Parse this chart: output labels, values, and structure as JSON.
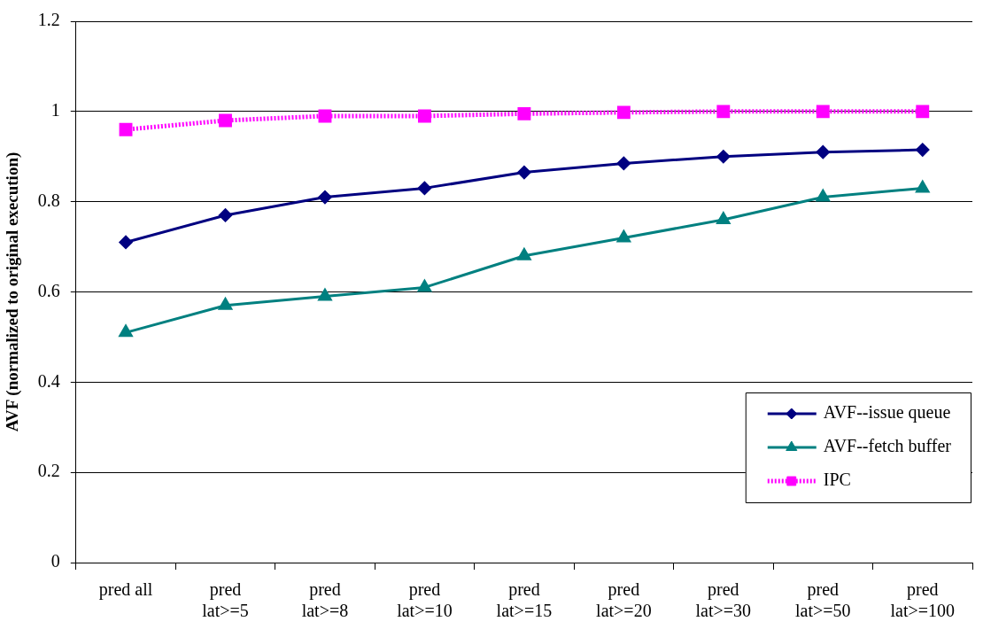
{
  "chart_data": {
    "type": "line",
    "ylabel": "AVF (normalized to original execution)",
    "categories": [
      "pred all",
      "pred\nlat>=5",
      "pred\nlat>=8",
      "pred\nlat>=10",
      "pred\nlat>=15",
      "pred\nlat>=20",
      "pred\nlat>=30",
      "pred\nlat>=50",
      "pred\nlat>=100"
    ],
    "series": [
      {
        "name": "AVF--issue queue",
        "color": "#000080",
        "marker": "diamond",
        "line_style": "solid",
        "values": [
          0.71,
          0.77,
          0.81,
          0.83,
          0.865,
          0.885,
          0.9,
          0.91,
          0.915
        ]
      },
      {
        "name": "AVF--fetch buffer",
        "color": "#008080",
        "marker": "triangle",
        "line_style": "solid",
        "values": [
          0.51,
          0.57,
          0.59,
          0.61,
          0.68,
          0.72,
          0.76,
          0.81,
          0.83
        ]
      },
      {
        "name": "IPC",
        "color": "#ff00ff",
        "marker": "square",
        "line_style": "dotted",
        "values": [
          0.96,
          0.98,
          0.99,
          0.99,
          0.995,
          0.998,
          1.0,
          1.0,
          1.0
        ]
      }
    ],
    "ylim": [
      0,
      1.2
    ],
    "yticks": [
      0,
      0.2,
      0.4,
      0.6,
      0.8,
      1,
      1.2
    ],
    "grid": "y",
    "legend": "bottom right"
  }
}
